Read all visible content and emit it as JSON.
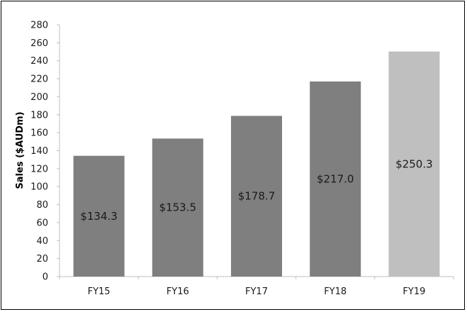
{
  "chart_data": {
    "type": "bar",
    "categories": [
      "FY15",
      "FY16",
      "FY17",
      "FY18",
      "FY19"
    ],
    "values": [
      134.3,
      153.5,
      178.7,
      217.0,
      250.3
    ],
    "data_labels": [
      "$134.3",
      "$153.5",
      "$178.7",
      "$217.0",
      "$250.3"
    ],
    "title": "",
    "xlabel": "",
    "ylabel": "Sales ($AUDm)",
    "ylim": [
      0,
      280
    ],
    "yticks": [
      0,
      20,
      40,
      60,
      80,
      100,
      120,
      140,
      160,
      180,
      200,
      220,
      240,
      260,
      280
    ],
    "grid": false,
    "legend": "none",
    "bar_colors": [
      "#7f7f7f",
      "#7f7f7f",
      "#7f7f7f",
      "#7f7f7f",
      "#bfbfbf"
    ],
    "axis_color": "#bfbfbf"
  }
}
